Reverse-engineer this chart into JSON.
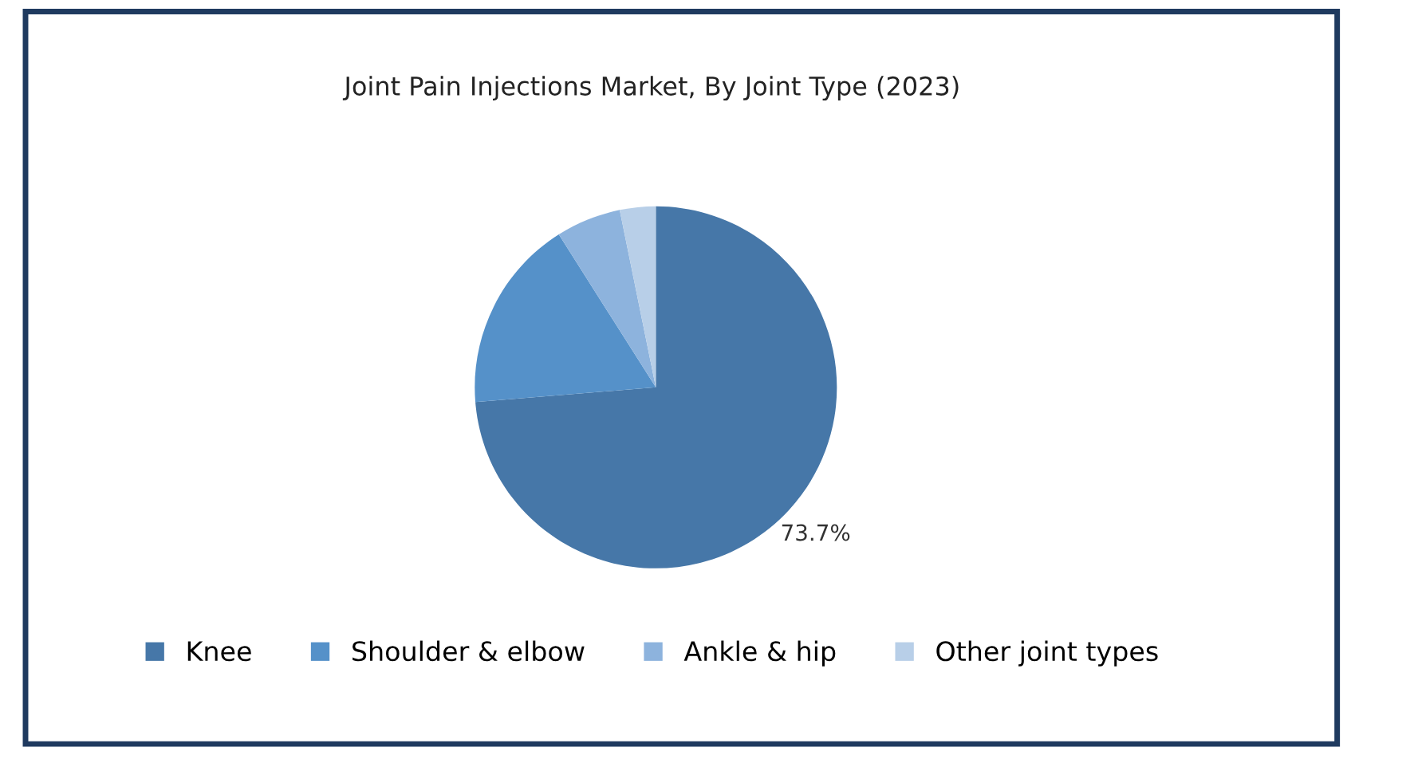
{
  "chart_data": {
    "type": "pie",
    "title": "Joint Pain Injections Market, By Joint Type (2023)",
    "categories": [
      "Knee",
      "Shoulder & elbow",
      "Ankle & hip",
      "Other joint types"
    ],
    "values": [
      73.7,
      17.3,
      5.8,
      3.2
    ],
    "colors": [
      "#4677a8",
      "#5591c9",
      "#8db3dd",
      "#b8cfe8"
    ],
    "value_labels": [
      "73.7%",
      null,
      null,
      null
    ],
    "legend": "bottom"
  }
}
